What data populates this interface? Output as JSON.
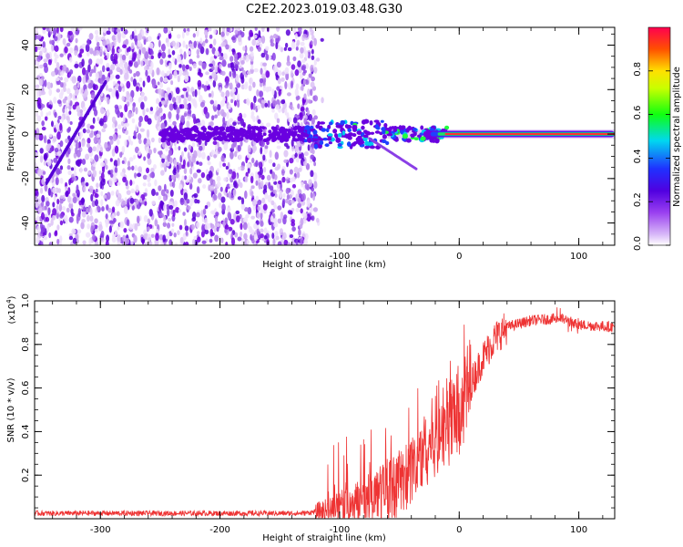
{
  "figure": {
    "title": "C2E2.2023.019.03.48.G30"
  },
  "chart_data": [
    {
      "type": "heatmap",
      "name": "spectrogram",
      "xlabel": "Height of straight line (km)",
      "ylabel": "Frequency (Hz)",
      "xlim": [
        -355,
        130
      ],
      "ylim": [
        -50,
        48
      ],
      "xticks": [
        -300,
        -200,
        -100,
        0,
        100
      ],
      "yticks": [
        -40,
        -20,
        0,
        20,
        40
      ],
      "description_regions": {
        "noise_region_x": [
          -355,
          -120
        ],
        "carrier_frequency_hz": 0,
        "strong_carrier_x": [
          -30,
          130
        ]
      },
      "colorbar": {
        "label": "Normalized spectral amplitude",
        "range": [
          0.0,
          1.0
        ],
        "ticks": [
          0.0,
          0.2,
          0.4,
          0.6,
          0.8
        ],
        "tick_labels": [
          "0.0",
          "0.2",
          "0.4",
          "0.6",
          "0.8"
        ],
        "colors": [
          "#ffffff",
          "#b57cf0",
          "#7a00e6",
          "#1f2bff",
          "#00d8f0",
          "#10ff10",
          "#ffe000",
          "#ff5000",
          "#ff0050"
        ]
      }
    },
    {
      "type": "line",
      "name": "snr",
      "xlabel": "Height of straight line (km)",
      "ylabel": "SNR (10 * v/v)",
      "multiplier_label": "(x10",
      "multiplier_exp": "4",
      "multiplier_close": ")",
      "xlim": [
        -355,
        130
      ],
      "ylim": [
        0,
        1.0
      ],
      "xticks": [
        -300,
        -200,
        -100,
        0,
        100
      ],
      "yticks": [
        0.2,
        0.4,
        0.6,
        0.8,
        1.0
      ],
      "ytick_labels": [
        "0.2",
        "0.4",
        "0.6",
        "0.8",
        "1.0"
      ],
      "color": "#ee3333",
      "series_shape": [
        {
          "x": -355,
          "y": 0.025
        },
        {
          "x": -130,
          "y": 0.025
        },
        {
          "x": -110,
          "y": 0.04
        },
        {
          "x": -80,
          "y": 0.09
        },
        {
          "x": -55,
          "y": 0.15
        },
        {
          "x": -40,
          "y": 0.22
        },
        {
          "x": -25,
          "y": 0.35
        },
        {
          "x": -15,
          "y": 0.42
        },
        {
          "x": 0,
          "y": 0.5
        },
        {
          "x": 10,
          "y": 0.62
        },
        {
          "x": 20,
          "y": 0.74
        },
        {
          "x": 30,
          "y": 0.83
        },
        {
          "x": 40,
          "y": 0.88
        },
        {
          "x": 60,
          "y": 0.91
        },
        {
          "x": 85,
          "y": 0.92
        },
        {
          "x": 100,
          "y": 0.89
        },
        {
          "x": 130,
          "y": 0.88
        }
      ]
    }
  ]
}
